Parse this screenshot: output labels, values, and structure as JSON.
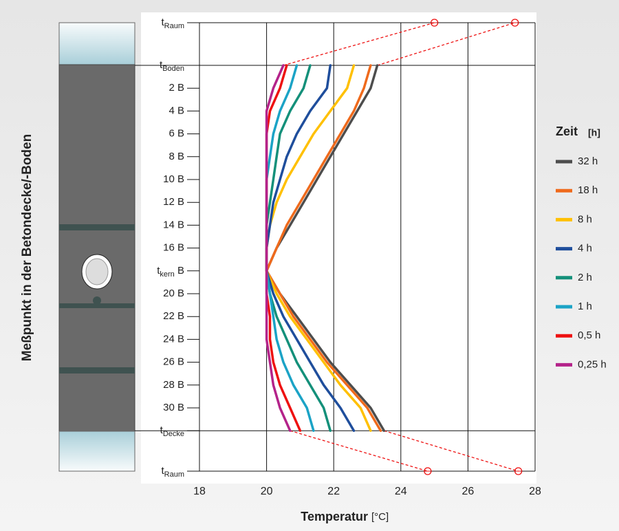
{
  "chart_data": {
    "type": "line",
    "y_axis_label": "Meßpunkt in der Betondecke/-Boden",
    "x_axis_label": "Temperatur",
    "x_axis_unit": "[°C]",
    "legend_title": "Zeit",
    "legend_unit": "[h]",
    "legend_position": "right",
    "categories": [
      {
        "text": "t",
        "sub": "Raum"
      },
      {
        "text": "t",
        "sub": "Boden"
      },
      {
        "text": "2 B"
      },
      {
        "text": "4 B"
      },
      {
        "text": "6 B"
      },
      {
        "text": "8 B"
      },
      {
        "text": "10 B"
      },
      {
        "text": "12 B"
      },
      {
        "text": "14 B"
      },
      {
        "text": "16 B"
      },
      {
        "text": "t",
        "sub": "kern",
        "suffix": " B"
      },
      {
        "text": "20 B"
      },
      {
        "text": "22 B"
      },
      {
        "text": "24 B"
      },
      {
        "text": "26 B"
      },
      {
        "text": "28 B"
      },
      {
        "text": "30 B"
      },
      {
        "text": "t",
        "sub": "Decke"
      },
      {
        "text": "t",
        "sub": "Raum"
      }
    ],
    "xlim": [
      18,
      28
    ],
    "xticks": [
      18,
      20,
      22,
      24,
      26,
      28
    ],
    "grid": true,
    "series": [
      {
        "name": "32 h",
        "color": "#4d4d4d",
        "values": [
          null,
          23.3,
          23.1,
          22.7,
          22.3,
          21.9,
          21.5,
          21.1,
          20.7,
          20.3,
          20.0,
          20.4,
          20.9,
          21.4,
          21.9,
          22.5,
          23.1,
          23.5,
          null
        ]
      },
      {
        "name": "18 h",
        "color": "#ef6a1c",
        "values": [
          null,
          23.1,
          22.9,
          22.6,
          22.2,
          21.8,
          21.4,
          21.0,
          20.6,
          20.3,
          20.0,
          20.4,
          20.8,
          21.3,
          21.8,
          22.4,
          23.0,
          23.4,
          null
        ]
      },
      {
        "name": "8 h",
        "color": "#ffc000",
        "values": [
          null,
          22.6,
          22.4,
          21.9,
          21.4,
          21.0,
          20.6,
          20.3,
          20.1,
          20.0,
          20.0,
          20.3,
          20.7,
          21.2,
          21.7,
          22.2,
          22.8,
          23.1,
          null
        ]
      },
      {
        "name": "4 h",
        "color": "#1f4e9c",
        "values": [
          null,
          21.9,
          21.8,
          21.3,
          20.9,
          20.6,
          20.4,
          20.2,
          20.1,
          20.0,
          20.0,
          20.2,
          20.5,
          20.9,
          21.3,
          21.7,
          22.2,
          22.6,
          null
        ]
      },
      {
        "name": "2 h",
        "color": "#14907a",
        "values": [
          null,
          21.3,
          21.1,
          20.7,
          20.4,
          20.3,
          20.2,
          20.1,
          20.0,
          20.0,
          20.0,
          20.1,
          20.3,
          20.6,
          20.9,
          21.3,
          21.7,
          21.9,
          null
        ]
      },
      {
        "name": "1 h",
        "color": "#1ba3c6",
        "values": [
          null,
          20.9,
          20.7,
          20.4,
          20.2,
          20.1,
          20.0,
          20.0,
          20.0,
          20.0,
          20.0,
          20.1,
          20.2,
          20.3,
          20.5,
          20.8,
          21.2,
          21.4,
          null
        ]
      },
      {
        "name": "0,5 h",
        "color": "#ee1111",
        "values": [
          null,
          20.6,
          20.4,
          20.1,
          20.0,
          20.0,
          20.0,
          20.0,
          20.0,
          20.0,
          20.0,
          20.0,
          20.1,
          20.1,
          20.2,
          20.4,
          20.7,
          21.0,
          null
        ]
      },
      {
        "name": "0,25  h",
        "color": "#b4238a",
        "values": [
          null,
          20.5,
          20.2,
          20.0,
          20.0,
          20.0,
          20.0,
          20.0,
          20.0,
          20.0,
          20.0,
          20.0,
          20.0,
          20.0,
          20.1,
          20.2,
          20.4,
          20.7,
          null
        ]
      }
    ],
    "room_temperatures": {
      "color": "#ee1111",
      "top": [
        25.0,
        27.4
      ],
      "bottom": [
        24.8,
        27.5
      ]
    }
  }
}
